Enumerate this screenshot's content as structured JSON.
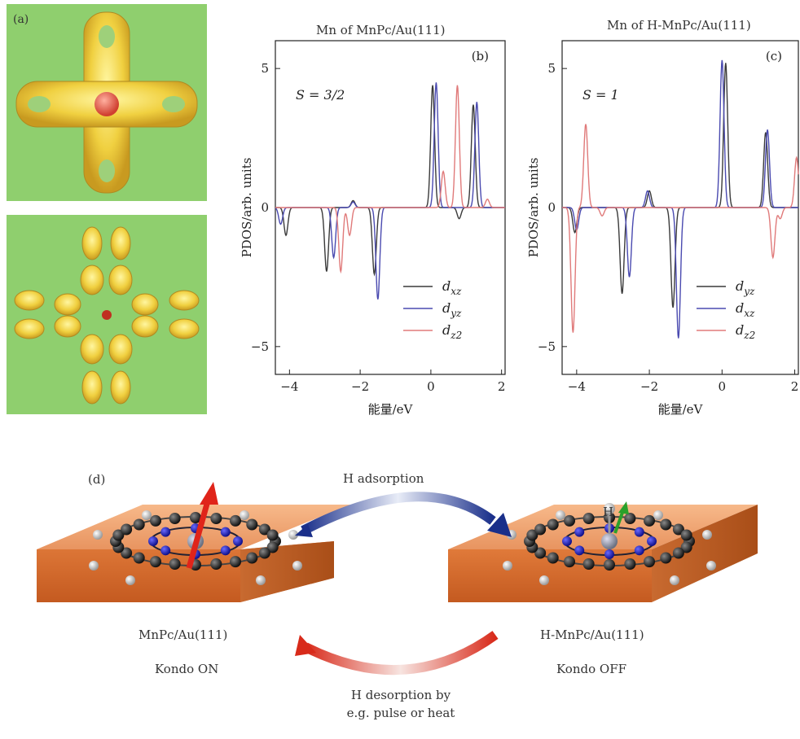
{
  "panel_a": {
    "label": "(a)"
  },
  "panel_b": {
    "title": "Mn of MnPc/Au(111)",
    "label": "(b)",
    "spin": "S = 3/2"
  },
  "panel_c": {
    "title": "Mn of H-MnPc/Au(111)",
    "label": "(c)",
    "spin": "S = 1"
  },
  "panel_d": {
    "label": "(d)",
    "arrow_top_label": "H adsorption",
    "arrow_bottom_label_line1": "H desorption by",
    "arrow_bottom_label_line2": "e.g. pulse or heat",
    "left_name": "MnPc/Au(111)",
    "left_state": "Kondo ON",
    "right_name": "H-MnPc/Au(111)",
    "right_state": "Kondo OFF",
    "h_atom_label": "H"
  },
  "chart_data": [
    {
      "type": "line",
      "title": "Mn of MnPc/Au(111)",
      "annotation": "S = 3/2",
      "xlabel": "能量/eV",
      "ylabel": "PDOS/arb. units",
      "xlim": [
        -4.4,
        2.1
      ],
      "ylim": [
        -6.0,
        6.0
      ],
      "xticks": [
        -4,
        -2,
        0,
        2
      ],
      "yticks": [
        -5,
        0,
        5
      ],
      "legend_position": "bottom-right",
      "series": [
        {
          "name": "dxz",
          "color": "#3a3a3a",
          "peaks": [
            [
              -4.1,
              -1.0
            ],
            [
              -2.95,
              -2.3
            ],
            [
              -2.2,
              0.25
            ],
            [
              -1.6,
              -2.4
            ],
            [
              0.05,
              4.4
            ],
            [
              0.8,
              -0.4
            ],
            [
              1.2,
              3.7
            ]
          ]
        },
        {
          "name": "dyz",
          "color": "#4a4ab0",
          "peaks": [
            [
              -4.25,
              -0.6
            ],
            [
              -2.75,
              -1.8
            ],
            [
              -2.2,
              0.2
            ],
            [
              -1.5,
              -3.3
            ],
            [
              0.15,
              4.5
            ],
            [
              1.3,
              3.8
            ]
          ]
        },
        {
          "name": "dz2",
          "color": "#e07a7a",
          "peaks": [
            [
              -2.55,
              -2.3
            ],
            [
              -2.3,
              -1.0
            ],
            [
              0.35,
              1.3
            ],
            [
              0.75,
              4.4
            ],
            [
              1.6,
              0.3
            ]
          ]
        }
      ]
    },
    {
      "type": "line",
      "title": "Mn of H-MnPc/Au(111)",
      "annotation": "S = 1",
      "xlabel": "能量/eV",
      "ylabel": "PDOS/arb. units",
      "xlim": [
        -4.4,
        2.1
      ],
      "ylim": [
        -6.0,
        6.0
      ],
      "xticks": [
        -4,
        -2,
        0,
        2
      ],
      "yticks": [
        -5,
        0,
        5
      ],
      "legend_position": "bottom-right",
      "series": [
        {
          "name": "dyz",
          "color": "#3a3a3a",
          "peaks": [
            [
              -4.05,
              -0.9
            ],
            [
              -2.75,
              -3.1
            ],
            [
              -2.0,
              0.6
            ],
            [
              -1.35,
              -3.6
            ],
            [
              0.1,
              5.2
            ],
            [
              1.2,
              2.7
            ]
          ]
        },
        {
          "name": "dxz",
          "color": "#4a4ab0",
          "peaks": [
            [
              -4.0,
              -0.8
            ],
            [
              -2.55,
              -2.5
            ],
            [
              -2.05,
              0.6
            ],
            [
              -1.2,
              -4.7
            ],
            [
              0.0,
              5.3
            ],
            [
              1.25,
              2.8
            ]
          ]
        },
        {
          "name": "dz2",
          "color": "#e07a7a",
          "peaks": [
            [
              -4.1,
              -4.5
            ],
            [
              -3.75,
              3.0
            ],
            [
              -3.3,
              -0.3
            ],
            [
              1.4,
              -1.8
            ],
            [
              1.6,
              -0.4
            ],
            [
              2.05,
              1.8
            ]
          ]
        }
      ]
    }
  ]
}
